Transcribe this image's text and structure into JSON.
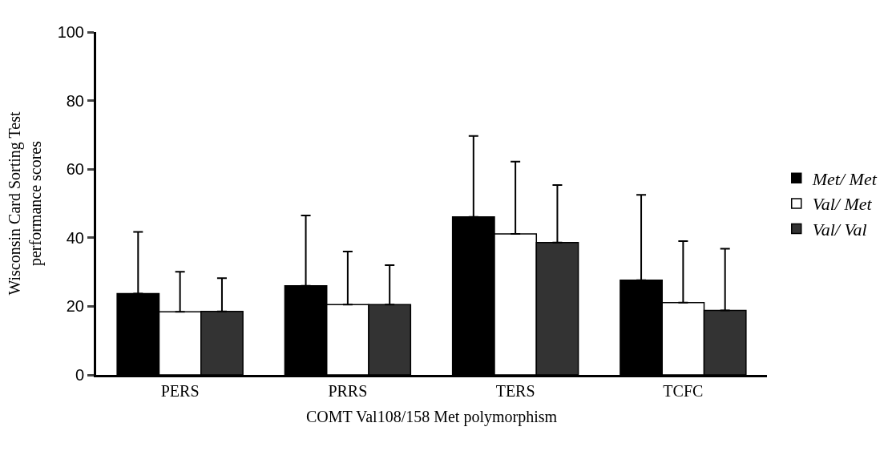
{
  "chart_data": {
    "type": "bar",
    "xlabel": "COMT Val108/158 Met polymorphism",
    "ylabel": "Wisconsin Card Sorting Test\nperformance scores",
    "categories": [
      "PERS",
      "PRRS",
      "TERS",
      "TCFC"
    ],
    "series": [
      {
        "name": "Met/ Met",
        "color": "#000000",
        "values": [
          23.7,
          26.0,
          46.1,
          27.6
        ],
        "errors": [
          [
            23.7,
            41.7
          ],
          [
            26.0,
            46.5
          ],
          [
            46.1,
            69.7
          ],
          [
            27.6,
            52.5
          ]
        ]
      },
      {
        "name": "Val/ Met",
        "color": "#ffffff",
        "values": [
          18.4,
          20.5,
          41.1,
          21.1
        ],
        "errors": [
          [
            18.4,
            30.1
          ],
          [
            20.5,
            36.0
          ],
          [
            41.1,
            62.2
          ],
          [
            21.1,
            39.0
          ]
        ]
      },
      {
        "name": "Val/ Val",
        "color": "#333333",
        "values": [
          18.5,
          20.5,
          38.6,
          18.8
        ],
        "errors": [
          [
            18.5,
            28.2
          ],
          [
            20.5,
            32.0
          ],
          [
            38.6,
            55.4
          ],
          [
            18.8,
            36.8
          ]
        ]
      }
    ],
    "ylim": [
      0,
      100
    ],
    "yticks": [
      0,
      20,
      40,
      60,
      80,
      100
    ],
    "legend": "right"
  }
}
